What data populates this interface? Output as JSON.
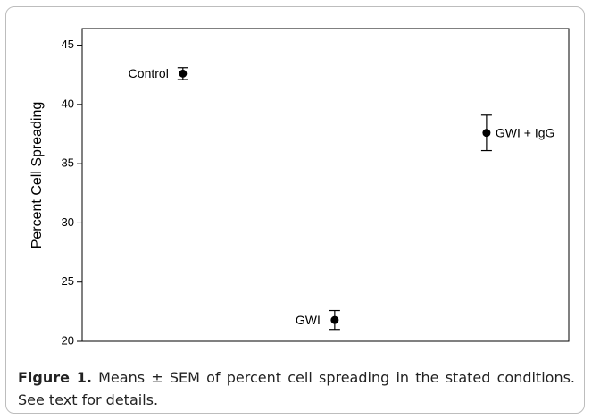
{
  "chart_data": {
    "type": "errorbar",
    "ylabel": "Percent Cell Spreading",
    "categories": [
      "Control",
      "GWI",
      "GWI + IgG"
    ],
    "values": [
      42.6,
      21.8,
      37.6
    ],
    "errors": [
      0.5,
      0.8,
      1.5
    ],
    "color": "#000000",
    "ylim": [
      20,
      46.4
    ],
    "yticks": [
      20,
      25,
      30,
      35,
      40,
      45
    ]
  },
  "caption": {
    "label": "Figure 1.",
    "text": "Means ± SEM of percent cell spreading in the stated conditions. See text for details."
  }
}
